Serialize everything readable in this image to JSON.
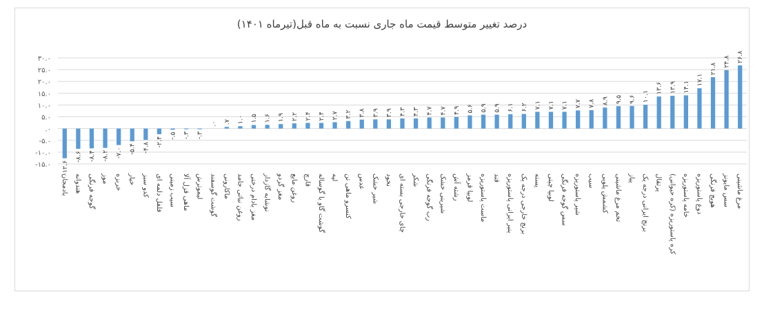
{
  "chart_data": {
    "type": "bar",
    "title": "درصد تغییر متوسط قیمت ماه جاری نسبت به ماه قبل(تیرماه ۱۴۰۱)",
    "xlabel": "",
    "ylabel": "",
    "ylim": [
      -15,
      30
    ],
    "yticks": [
      "-۱۵.۰",
      "-۱۰.۰",
      "-۵.۰",
      ".۰",
      "۵.۰",
      "۱۰.۰",
      "۱۵.۰",
      "۲۰.۰",
      "۲۵.۰",
      "۳۰.۰"
    ],
    "grid": true,
    "legend": "none",
    "bar_color": "#5b9bd5",
    "categories": [
      "مرغ ماشینی",
      "سس مایونز",
      "هویج فرنگی",
      "دوغ پاستوریزه",
      "خامه پاستوریزه",
      "کره پاستوریزه (کره حیوانی)",
      "پرتقال",
      "برنج ایرانی درجه یک",
      "پیاز",
      "تخم مرغ ماشینی",
      "کشمش پلویی",
      "سیب",
      "شیر پاستوریزه",
      "سس گوجه فرنگی",
      "لوبیا چیتی",
      "پسته",
      "برنج خارجی درجه یک",
      "پنیر ایرانی پاستوریزه",
      "قند",
      "ماست پاستوریزه",
      "لوبیا قرمز",
      "رشته آش",
      "شیرینی خشک",
      "رب گوجه فرنگی",
      "شکر",
      "چای خارجی بسته ای",
      "نخود",
      "شیر خشک",
      "عدس",
      "کنسرو ماهی تن",
      "لپه",
      "گوشت گاو یا گوساله",
      "قارچ",
      "روغن مایع",
      "مغز گردو",
      "نوشابه گازدار",
      "مغز بادام درختی",
      "روغن نباتی جامد",
      "ماکارونی",
      "گوشت گوسفند",
      "لیموترش",
      "ماهی قزل آلا",
      "سیب زمینی",
      "فلفل دلمه ای",
      "کدو سبز",
      "خیار",
      "خربزه",
      "موز",
      "گوجه فرنگی",
      "هندوانه",
      "بادمجان"
    ],
    "values": [
      26.8,
      24.8,
      21.8,
      17.1,
      14.1,
      13.9,
      13.6,
      10.1,
      9.6,
      9.5,
      8.9,
      7.8,
      7.7,
      7.1,
      7.1,
      7.1,
      6.2,
      6.1,
      5.9,
      5.9,
      5.6,
      4.9,
      4.7,
      4.7,
      4.3,
      4.3,
      3.9,
      3.9,
      3.8,
      3.2,
      2.7,
      2.4,
      2.4,
      2.2,
      1.9,
      1.6,
      1.5,
      1.0,
      0.7,
      0.0,
      -0.3,
      -0.3,
      -0.5,
      -2.4,
      -4.8,
      -5.4,
      -7.0,
      -8.2,
      -8.4,
      -8.6,
      -12.6
    ],
    "labels": [
      "۲۶.۸",
      "۲۴.۸",
      "۲۱.۸",
      "۱۷.۱",
      "۱۴.۱",
      "۱۳.۹",
      "۱۳.۶",
      "۱۰.۱",
      "۹.۶",
      "۹.۵",
      "۸.۹",
      "۷.۸",
      "۷.۷",
      "۷.۱",
      "۷.۱",
      "۷.۱",
      "۶.۲",
      "۶.۱",
      "۵.۹",
      "۵.۹",
      "۵.۶",
      "۴.۹",
      "۴.۷",
      "۴.۷",
      "۴.۳",
      "۴.۳",
      "۳.۹",
      "۳.۹",
      "۳.۸",
      "۳.۲",
      "۲.۷",
      "۲.۴",
      "۲.۴",
      "۲.۲",
      "۱.۹",
      "۱.۶",
      "۱.۵",
      "۱.۰",
      ".۷",
      ".۰",
      "-.۳",
      "-.۳",
      "-.۵",
      "-۲.۴",
      "-۴.۸",
      "-۵.۴",
      "-۷.۰",
      "-۸.۲",
      "-۸.۴",
      "-۸.۶",
      "-۱۲.۶"
    ]
  }
}
